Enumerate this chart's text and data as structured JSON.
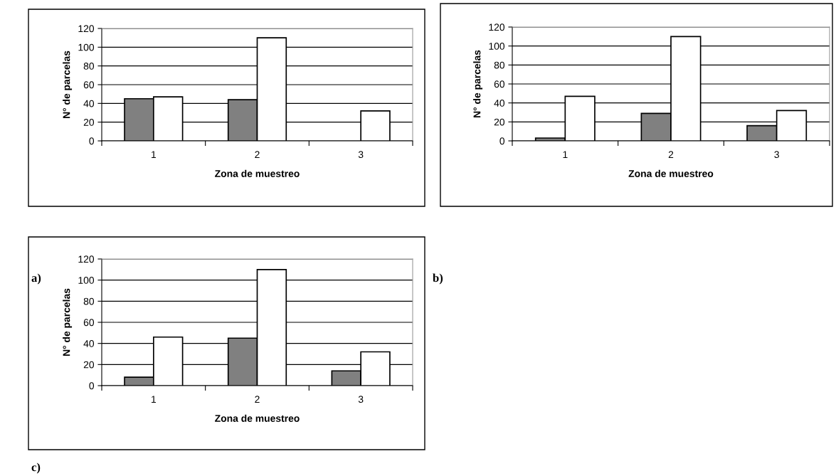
{
  "chart_data": [
    {
      "type": "bar",
      "categories": [
        "1",
        "2",
        "3"
      ],
      "xlabel": "Zona de muestreo",
      "ylabel": "N° de parcelas",
      "ylim": [
        0,
        120
      ],
      "yticks": [
        0,
        20,
        40,
        60,
        80,
        100,
        120
      ],
      "grid": "y",
      "annotations": [
        "a)"
      ],
      "series": [
        {
          "color": "#808080",
          "values": [
            45,
            44,
            null
          ]
        },
        {
          "color": "#ffffff",
          "values": [
            47,
            110,
            32
          ]
        }
      ]
    },
    {
      "type": "bar",
      "categories": [
        "1",
        "2",
        "3"
      ],
      "xlabel": "Zona de muestreo",
      "ylabel": "N° de parcelas",
      "ylim": [
        0,
        120
      ],
      "yticks": [
        0,
        20,
        40,
        60,
        80,
        100,
        120
      ],
      "grid": "y",
      "annotations": [
        "b)"
      ],
      "series": [
        {
          "color": "#808080",
          "values": [
            3,
            29,
            16
          ]
        },
        {
          "color": "#ffffff",
          "values": [
            47,
            110,
            32
          ]
        }
      ]
    },
    {
      "type": "bar",
      "categories": [
        "1",
        "2",
        "3"
      ],
      "xlabel": "Zona de muestreo",
      "ylabel": "N° de parcelas",
      "ylim": [
        0,
        120
      ],
      "yticks": [
        0,
        20,
        40,
        60,
        80,
        100,
        120
      ],
      "grid": "y",
      "annotations": [
        "c)"
      ],
      "series": [
        {
          "color": "#808080",
          "values": [
            8,
            45,
            14
          ]
        },
        {
          "color": "#ffffff",
          "values": [
            46,
            110,
            32
          ]
        }
      ]
    }
  ]
}
